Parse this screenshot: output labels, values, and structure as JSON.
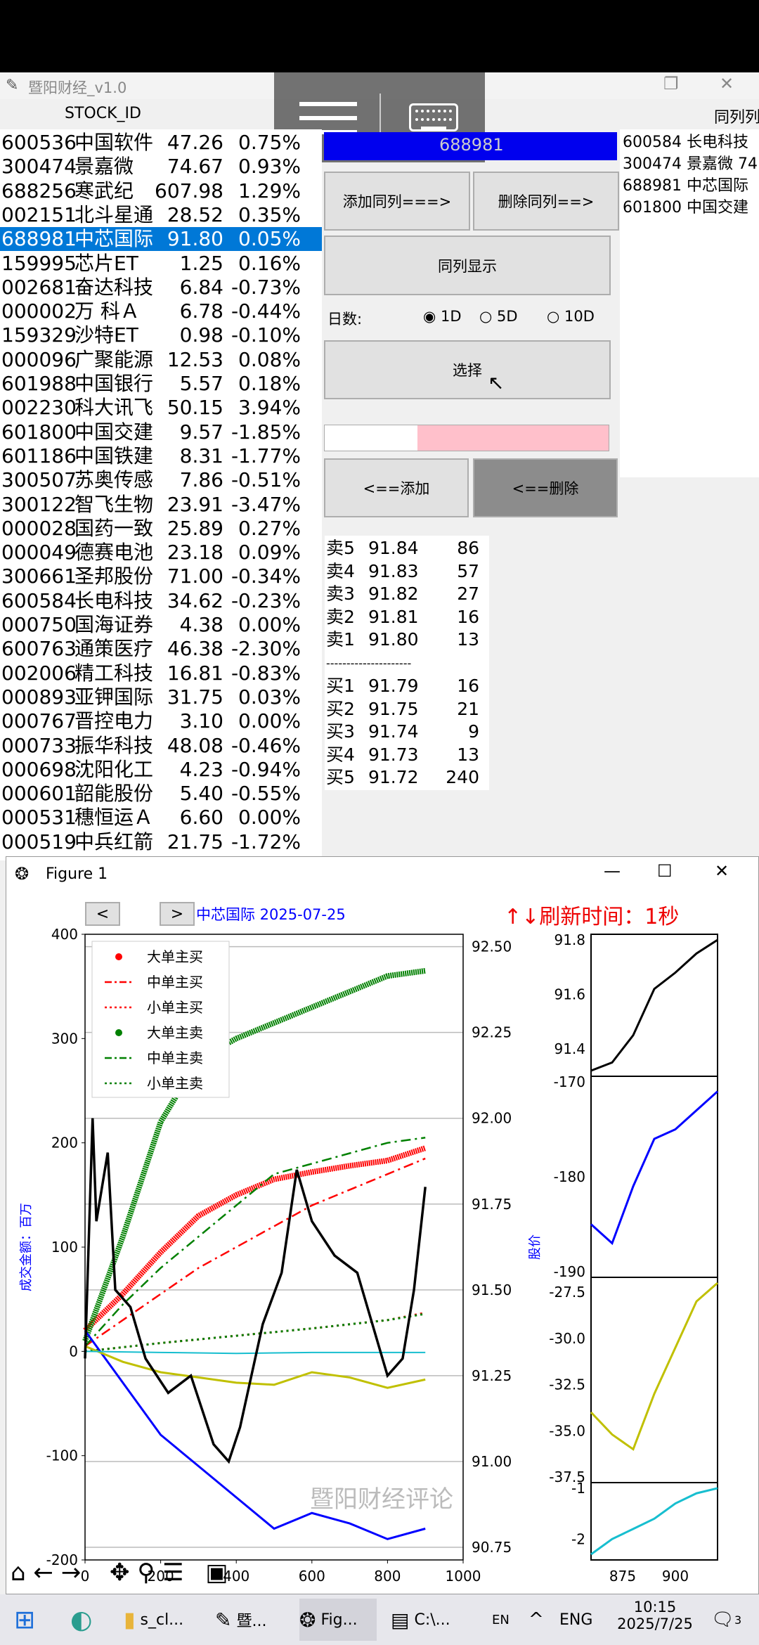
{
  "window_title": "暨阳财经_v1.0",
  "header": {
    "stock_id_label": "STOCK_ID",
    "peer_label": "同列列"
  },
  "stocks": [
    {
      "code": "600536",
      "name": "中国软件",
      "price": "47.26",
      "pct": "0.75%"
    },
    {
      "code": "300474",
      "name": "景嘉微",
      "price": "74.67",
      "pct": "0.93%"
    },
    {
      "code": "688256",
      "name": "寒武纪",
      "price": "607.98",
      "pct": "1.29%"
    },
    {
      "code": "002151",
      "name": "北斗星通",
      "price": "28.52",
      "pct": "0.35%"
    },
    {
      "code": "688981",
      "name": "中芯国际",
      "price": "91.80",
      "pct": "0.05%"
    },
    {
      "code": "159995",
      "name": "芯片ET",
      "price": "1.25",
      "pct": "0.16%"
    },
    {
      "code": "002681",
      "name": "奋达科技",
      "price": "6.84",
      "pct": "-0.73%"
    },
    {
      "code": "000002",
      "name": "万 科Ａ",
      "price": "6.78",
      "pct": "-0.44%"
    },
    {
      "code": "159329",
      "name": "沙特ET",
      "price": "0.98",
      "pct": "-0.10%"
    },
    {
      "code": "000096",
      "name": "广聚能源",
      "price": "12.53",
      "pct": "0.08%"
    },
    {
      "code": "601988",
      "name": "中国银行",
      "price": "5.57",
      "pct": "0.18%"
    },
    {
      "code": "002230",
      "name": "科大讯飞",
      "price": "50.15",
      "pct": "3.94%"
    },
    {
      "code": "601800",
      "name": "中国交建",
      "price": "9.57",
      "pct": "-1.85%"
    },
    {
      "code": "601186",
      "name": "中国铁建",
      "price": "8.31",
      "pct": "-1.77%"
    },
    {
      "code": "300507",
      "name": "苏奥传感",
      "price": "7.86",
      "pct": "-0.51%"
    },
    {
      "code": "300122",
      "name": "智飞生物",
      "price": "23.91",
      "pct": "-3.47%"
    },
    {
      "code": "000028",
      "name": "国药一致",
      "price": "25.89",
      "pct": "0.27%"
    },
    {
      "code": "000049",
      "name": "德赛电池",
      "price": "23.18",
      "pct": "0.09%"
    },
    {
      "code": "300661",
      "name": "圣邦股份",
      "price": "71.00",
      "pct": "-0.34%"
    },
    {
      "code": "600584",
      "name": "长电科技",
      "price": "34.62",
      "pct": "-0.23%"
    },
    {
      "code": "000750",
      "name": "国海证券",
      "price": "4.38",
      "pct": "0.00%"
    },
    {
      "code": "600763",
      "name": "通策医疗",
      "price": "46.38",
      "pct": "-2.30%"
    },
    {
      "code": "002006",
      "name": "精工科技",
      "price": "16.81",
      "pct": "-0.83%"
    },
    {
      "code": "000893",
      "name": "亚钾国际",
      "price": "31.75",
      "pct": "0.03%"
    },
    {
      "code": "000767",
      "name": "晋控电力",
      "price": "3.10",
      "pct": "0.00%"
    },
    {
      "code": "000733",
      "name": "振华科技",
      "price": "48.08",
      "pct": "-0.46%"
    },
    {
      "code": "000698",
      "name": "沈阳化工",
      "price": "4.23",
      "pct": "-0.94%"
    },
    {
      "code": "000601",
      "name": "韶能股份",
      "price": "5.40",
      "pct": "-0.55%"
    },
    {
      "code": "000531",
      "name": "穗恒运Ａ",
      "price": "6.60",
      "pct": "0.00%"
    },
    {
      "code": "000519",
      "name": "中兵红箭",
      "price": "21.75",
      "pct": "-1.72%"
    }
  ],
  "controls": {
    "code_value": "688981",
    "add_peer": "添加同列===>",
    "del_peer": "删除同列==>",
    "show_peer": "同列显示",
    "days_label": "日数:",
    "opt_1d": "1D",
    "opt_5d": "5D",
    "opt_10d": "10D",
    "select": "选择",
    "add": "<==添加",
    "remove": "<==删除"
  },
  "peers": [
    "600584 长电科技",
    "300474 景嘉微  74",
    "688981 中芯国际",
    "601800 中国交建"
  ],
  "orderbook": {
    "asks": [
      [
        "卖5",
        "91.84",
        "86"
      ],
      [
        "卖4",
        "91.83",
        "57"
      ],
      [
        "卖3",
        "91.82",
        "27"
      ],
      [
        "卖2",
        "91.81",
        "16"
      ],
      [
        "卖1",
        "91.80",
        "13"
      ]
    ],
    "separator": "---------------------",
    "bids": [
      [
        "买1",
        "91.79",
        "16"
      ],
      [
        "买2",
        "91.75",
        "21"
      ],
      [
        "买3",
        "91.74",
        "9"
      ],
      [
        "买4",
        "91.73",
        "13"
      ],
      [
        "买5",
        "91.72",
        "240"
      ]
    ]
  },
  "figure": {
    "title": "Figure 1",
    "chart_title": "中芯国际  2025-07-25",
    "refresh": "↑↓刷新时间：1秒",
    "watermark": "暨阳财经评论",
    "nav_prev": "<",
    "nav_next": ">"
  },
  "chart_data": [
    {
      "type": "line",
      "ylabel": "成交金额：百万",
      "y2label": "股价",
      "xlim": [
        0,
        1000
      ],
      "ylim": [
        -200,
        400
      ],
      "y2lim": [
        90.75,
        92.5
      ],
      "xticks": [
        "0",
        "200",
        "400",
        "600",
        "800",
        "1000"
      ],
      "yticks": [
        "-200",
        "-100",
        "0",
        "100",
        "200",
        "300",
        "400"
      ],
      "y2ticks": [
        "90.75",
        "91.00",
        "91.25",
        "91.50",
        "91.75",
        "92.00",
        "92.25",
        "92.50"
      ],
      "legend_position": "top-left",
      "series": [
        {
          "name": "大单主买",
          "color": "#ff0000",
          "x": [
            0,
            100,
            200,
            300,
            400,
            500,
            600,
            700,
            800,
            900
          ],
          "y": [
            20,
            55,
            95,
            130,
            150,
            165,
            172,
            178,
            183,
            195
          ]
        },
        {
          "name": "中单主买",
          "color": "#ff0000",
          "x": [
            0,
            100,
            200,
            300,
            400,
            500,
            600,
            700,
            800,
            900
          ],
          "y": [
            5,
            30,
            55,
            80,
            100,
            120,
            140,
            155,
            170,
            185
          ]
        },
        {
          "name": "小单主买",
          "color": "#ff0000",
          "x": [
            0,
            200,
            400,
            600,
            800,
            900
          ],
          "y": [
            0,
            8,
            15,
            22,
            30,
            37
          ]
        },
        {
          "name": "大单主卖",
          "color": "#008000",
          "x": [
            0,
            100,
            200,
            300,
            400,
            500,
            600,
            700,
            800,
            900
          ],
          "y": [
            10,
            110,
            220,
            280,
            300,
            315,
            330,
            345,
            360,
            365
          ]
        },
        {
          "name": "中单主卖",
          "color": "#008000",
          "x": [
            0,
            100,
            200,
            300,
            400,
            500,
            600,
            700,
            800,
            900
          ],
          "y": [
            5,
            45,
            80,
            110,
            140,
            170,
            180,
            190,
            200,
            205
          ]
        },
        {
          "name": "小单主卖",
          "color": "#008000",
          "x": [
            0,
            200,
            400,
            600,
            800,
            900
          ],
          "y": [
            0,
            8,
            15,
            22,
            30,
            36
          ]
        },
        {
          "name": "",
          "color": "#0000ff",
          "x": [
            0,
            100,
            200,
            300,
            400,
            500,
            600,
            700,
            800,
            900
          ],
          "y": [
            20,
            -30,
            -80,
            -110,
            -140,
            -170,
            -155,
            -165,
            -180,
            -170
          ]
        },
        {
          "name": "",
          "color": "#c0c000",
          "x": [
            0,
            100,
            200,
            300,
            400,
            500,
            600,
            700,
            800,
            900
          ],
          "y": [
            5,
            -10,
            -20,
            -25,
            -30,
            -32,
            -20,
            -25,
            -35,
            -27
          ]
        },
        {
          "name": "",
          "color": "#17becf",
          "x": [
            0,
            200,
            400,
            600,
            800,
            900
          ],
          "y": [
            0,
            -1,
            -2,
            -1,
            -1,
            -1
          ]
        }
      ],
      "price_series": {
        "color": "#000000",
        "x": [
          0,
          20,
          30,
          60,
          80,
          120,
          160,
          220,
          280,
          340,
          380,
          410,
          470,
          520,
          560,
          600,
          660,
          720,
          760,
          800,
          840,
          870,
          900
        ],
        "y": [
          91.3,
          92.0,
          91.7,
          91.9,
          91.5,
          91.45,
          91.3,
          91.2,
          91.25,
          91.05,
          91.0,
          91.1,
          91.4,
          91.55,
          91.85,
          91.7,
          91.6,
          91.55,
          91.4,
          91.25,
          91.3,
          91.5,
          91.8
        ]
      }
    },
    {
      "type": "line",
      "yticks": [
        "91.4",
        "91.6",
        "91.8"
      ],
      "color": "#000000",
      "x": [
        860,
        870,
        880,
        890,
        900,
        910,
        920
      ],
      "y": [
        91.32,
        91.35,
        91.45,
        91.62,
        91.68,
        91.75,
        91.8
      ]
    },
    {
      "type": "line",
      "yticks": [
        "-190",
        "-180",
        "-170"
      ],
      "color": "#0000ff",
      "x": [
        860,
        870,
        880,
        890,
        900,
        910,
        920
      ],
      "y": [
        -185,
        -187,
        -181,
        -176,
        -175,
        -173,
        -171
      ]
    },
    {
      "type": "line",
      "yticks": [
        "-37.5",
        "-35.0",
        "-32.5",
        "-30.0",
        "-27.5"
      ],
      "color": "#c0c000",
      "x": [
        860,
        870,
        880,
        890,
        900,
        910,
        920
      ],
      "y": [
        -34,
        -35.2,
        -36,
        -33,
        -30.5,
        -28,
        -27
      ]
    },
    {
      "type": "line",
      "xticks": [
        "875",
        "900"
      ],
      "yticks": [
        "-2",
        "-1"
      ],
      "color": "#17becf",
      "x": [
        860,
        870,
        880,
        890,
        900,
        910,
        920
      ],
      "y": [
        -2.3,
        -2.0,
        -1.8,
        -1.6,
        -1.3,
        -1.1,
        -1.0
      ]
    }
  ],
  "taskbar": {
    "items": [
      "s_cl...",
      "暨...",
      "Fig...",
      "C:\\..."
    ],
    "lang1": "EN",
    "lang2": "ENG",
    "time": "10:15",
    "date": "2025/7/25",
    "notif": "3"
  }
}
